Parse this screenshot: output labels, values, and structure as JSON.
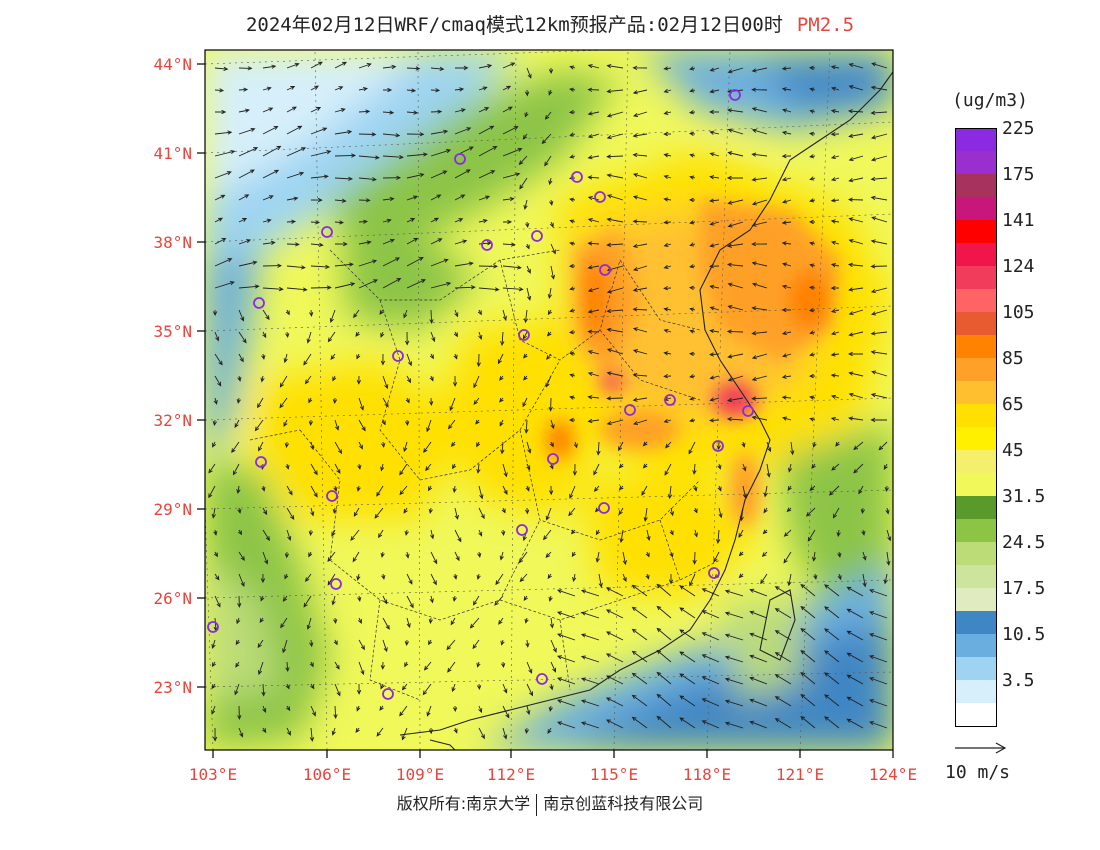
{
  "title": "2024年02月12日WRF/cmaq模式12km预报产品:02月12日00时",
  "pollutant": "PM2.5",
  "unit": "(ug/m3)",
  "wind_reference": "10 m/s",
  "copyright": {
    "left": "版权所有:南京大学",
    "right": "南京创蓝科技有限公司"
  },
  "axes": {
    "lat_ticks": [
      "23°N",
      "26°N",
      "29°N",
      "32°N",
      "35°N",
      "38°N",
      "41°N",
      "44°N"
    ],
    "lon_ticks": [
      "103°E",
      "106°E",
      "109°E",
      "112°E",
      "115°E",
      "118°E",
      "121°E",
      "124°E"
    ],
    "tick_color": "#e8453c"
  },
  "legend": [
    {
      "label": "225",
      "color": "#8a2be2"
    },
    {
      "label": "",
      "color": "#9a2fd0"
    },
    {
      "label": "175",
      "color": "#a8325e"
    },
    {
      "label": "",
      "color": "#c8167a"
    },
    {
      "label": "141",
      "color": "#ff0000"
    },
    {
      "label": "",
      "color": "#f0154a"
    },
    {
      "label": "124",
      "color": "#f23c5c"
    },
    {
      "label": "",
      "color": "#ff6464"
    },
    {
      "label": "105",
      "color": "#e85a30"
    },
    {
      "label": "",
      "color": "#ff8200"
    },
    {
      "label": "85",
      "color": "#ffa028"
    },
    {
      "label": "",
      "color": "#ffc030"
    },
    {
      "label": "65",
      "color": "#ffe000"
    },
    {
      "label": "",
      "color": "#fff000"
    },
    {
      "label": "45",
      "color": "#f5ef6e"
    },
    {
      "label": "",
      "color": "#f0f85a"
    },
    {
      "label": "31.5",
      "color": "#5a9a2a"
    },
    {
      "label": "",
      "color": "#8cc446"
    },
    {
      "label": "24.5",
      "color": "#bcdc78"
    },
    {
      "label": "",
      "color": "#cce49c"
    },
    {
      "label": "17.5",
      "color": "#e0ecc0"
    },
    {
      "label": "",
      "color": "#3f86c4"
    },
    {
      "label": "10.5",
      "color": "#6aaedf"
    },
    {
      "label": "",
      "color": "#9ed4f2"
    },
    {
      "label": "3.5",
      "color": "#d6effa"
    },
    {
      "label": "",
      "color": "#ffffff"
    }
  ],
  "chart_data": {
    "type": "heatmap",
    "title": "2024年02月12日WRF/cmaq模式12km预报产品:02月12日00时",
    "variable": "PM2.5",
    "unit": "(ug/m3)",
    "lat_ticks": [
      "23°N",
      "26°N",
      "29°N",
      "32°N",
      "35°N",
      "38°N",
      "41°N",
      "44°N"
    ],
    "lon_ticks": [
      "103°E",
      "106°E",
      "109°E",
      "112°E",
      "115°E",
      "118°E",
      "121°E",
      "124°E"
    ],
    "color_levels": [
      3.5,
      10.5,
      17.5,
      24.5,
      31.5,
      45,
      65,
      85,
      105,
      124,
      141,
      175,
      225
    ],
    "wind_reference": "10 m/s"
  }
}
